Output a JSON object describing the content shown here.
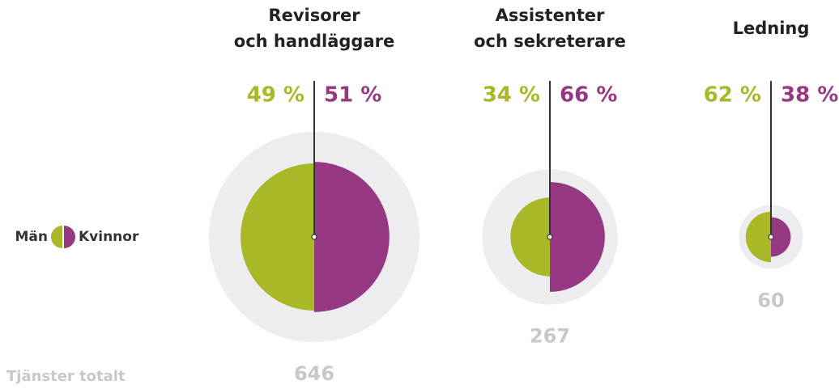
{
  "chart_data": {
    "type": "split_bubble",
    "categories": [
      [
        "Revisorer",
        "och handläggare"
      ],
      [
        "Assistenter",
        "och sekreterare"
      ],
      [
        "Ledning"
      ]
    ],
    "series": [
      {
        "name": "Män",
        "color": "#a8b826",
        "values": [
          49,
          34,
          62
        ],
        "value_labels": [
          "49 %",
          "34 %",
          "62 %"
        ]
      },
      {
        "name": "Kvinnor",
        "color": "#963882",
        "values": [
          51,
          66,
          38
        ],
        "value_labels": [
          "51 %",
          "66 %",
          "38 %"
        ]
      }
    ],
    "totals": [
      646,
      267,
      60
    ],
    "totals_label": "Tjänster totalt",
    "total_color": "#ededef"
  }
}
